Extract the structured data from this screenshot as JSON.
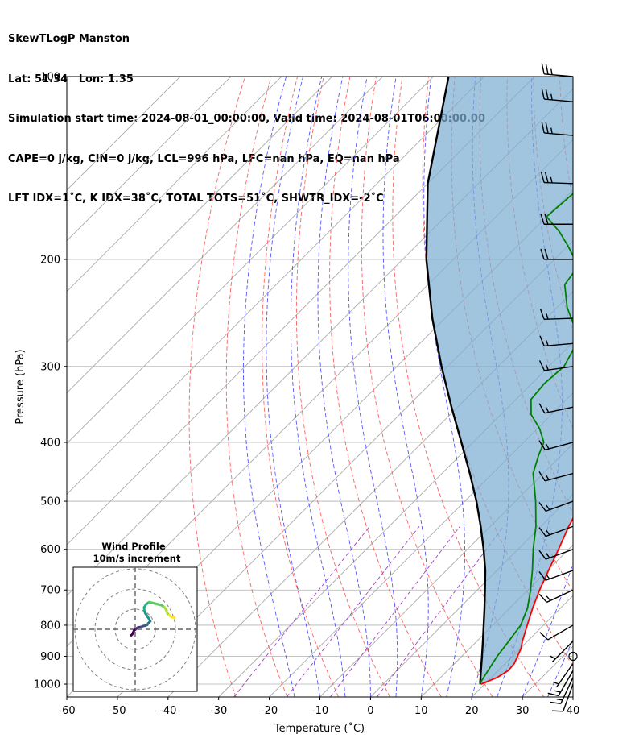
{
  "header": {
    "line1": "SkewTLogP Manston",
    "line2": "Lat: 51.34   Lon: 1.35",
    "line3": "Simulation start time: 2024-08-01_00:00:00, Valid time: 2024-08-01T06:00:00.00",
    "line4": "CAPE=0 j/kg, CIN=0 j/kg, LCL=996 hPa, LFC=nan hPa, EQ=nan hPa",
    "line5": "LFT IDX=1˚C, K IDX=38˚C, TOTAL TOTS=51˚C, SHWTR_IDX=-2˚C"
  },
  "chart_data": {
    "type": "skewt",
    "xlabel": "Temperature (˚C)",
    "ylabel": "Pressure (hPa)",
    "xlim": [
      -60,
      40
    ],
    "ylim": [
      1050,
      100
    ],
    "x_ticks": [
      -60,
      -50,
      -40,
      -30,
      -20,
      -10,
      0,
      10,
      20,
      30,
      40
    ],
    "y_ticks": [
      1000,
      900,
      800,
      700,
      600,
      500,
      400,
      300,
      200,
      100
    ],
    "colors": {
      "temperature": "#ff0000",
      "dewpoint": "#008000",
      "parcel": "#000000",
      "cape_fill": "#7eaed3",
      "dry_adiabats": "#ff6060",
      "moist_adiabats": "#5555ff",
      "mixing_ratio": "#a040c0",
      "isotherms": "#aaaaaa"
    },
    "temperature": {
      "p": [
        1000,
        975,
        950,
        925,
        900,
        875,
        850,
        800,
        750,
        700,
        650,
        600,
        550,
        500,
        450,
        400,
        350,
        300,
        275,
        250,
        235,
        225,
        210,
        200,
        185,
        170,
        150,
        130,
        115,
        100
      ],
      "t": [
        19.3,
        21.2,
        22.0,
        21.8,
        21.0,
        20.2,
        19.0,
        16.8,
        14.5,
        12.3,
        10.2,
        8.0,
        5.5,
        3.2,
        0.5,
        -3.0,
        -7.8,
        -14.0,
        -18.0,
        -21.5,
        -24.5,
        -27.0,
        -29.5,
        -31.0,
        -33.5,
        -36.0,
        -39.0,
        -42.0,
        -44.5,
        -47.0
      ]
    },
    "dewpoint": {
      "p": [
        1000,
        975,
        950,
        925,
        900,
        850,
        800,
        750,
        700,
        650,
        600,
        550,
        500,
        450,
        420,
        400,
        380,
        360,
        340,
        320,
        300,
        270,
        240,
        220,
        205,
        190,
        180,
        170,
        150,
        130,
        115,
        100
      ],
      "td": [
        19.0,
        18.5,
        18.0,
        17.5,
        17.0,
        16.3,
        15.5,
        13.5,
        10.5,
        7.0,
        3.0,
        -1.0,
        -6.0,
        -12.0,
        -14.5,
        -16.0,
        -19.5,
        -24.0,
        -27.0,
        -27.5,
        -27.0,
        -29.5,
        -38.0,
        -43.0,
        -44.0,
        -50.0,
        -54.5,
        -60.0,
        -59.0,
        -57.0,
        -55.5,
        -55.0
      ]
    },
    "parcel": {
      "p": [
        1000,
        996,
        950,
        900,
        850,
        800,
        750,
        700,
        650,
        600,
        550,
        500,
        450,
        400,
        350,
        300,
        250,
        200,
        150,
        100
      ],
      "t": [
        19.3,
        18.9,
        16.6,
        14.0,
        11.2,
        8.2,
        5.0,
        1.5,
        -2.3,
        -6.8,
        -11.9,
        -17.7,
        -24.5,
        -32.3,
        -41.2,
        -51.2,
        -62.5,
        -75.3,
        -90.0,
        -107.0
      ]
    },
    "wind_barbs": {
      "p": [
        1000,
        975,
        950,
        925,
        900,
        850,
        800,
        700,
        650,
        600,
        550,
        500,
        450,
        400,
        350,
        300,
        275,
        250,
        200,
        175,
        150,
        125,
        110,
        100
      ],
      "dir": [
        200,
        205,
        210,
        215,
        220,
        225,
        240,
        245,
        250,
        250,
        250,
        250,
        255,
        255,
        258,
        262,
        265,
        268,
        270,
        270,
        272,
        275,
        275,
        275
      ],
      "speed_kt": [
        10,
        15,
        15,
        5,
        0,
        5,
        10,
        15,
        15,
        15,
        15,
        15,
        15,
        15,
        15,
        15,
        15,
        15,
        20,
        20,
        25,
        25,
        25,
        25
      ]
    },
    "inset": {
      "title": "Wind Profile",
      "subtitle": "10m/s increment",
      "rings_ms": [
        10,
        20,
        30
      ],
      "hodograph_u": [
        -2.0,
        -1.5,
        -1.0,
        -0.5,
        0.5,
        1.2,
        2.0,
        3.0,
        4.0,
        5.0,
        6.0,
        6.5,
        7.0,
        7.5,
        7.0,
        6.0,
        5.0,
        4.5,
        4.5,
        5.5,
        7.0,
        9.0,
        11.0,
        13.0,
        14.5,
        15.5,
        16.0,
        17.0,
        18.0,
        19.5,
        19.5
      ],
      "hodograph_v": [
        -3.0,
        -2.5,
        -1.5,
        -0.5,
        0.2,
        0.8,
        1.0,
        1.2,
        1.6,
        1.8,
        2.2,
        3.0,
        3.5,
        4.0,
        5.0,
        6.5,
        8.0,
        9.5,
        11.0,
        12.5,
        13.5,
        13.0,
        12.5,
        12.0,
        11.0,
        9.5,
        8.0,
        7.0,
        6.0,
        6.0,
        5.5
      ]
    }
  }
}
